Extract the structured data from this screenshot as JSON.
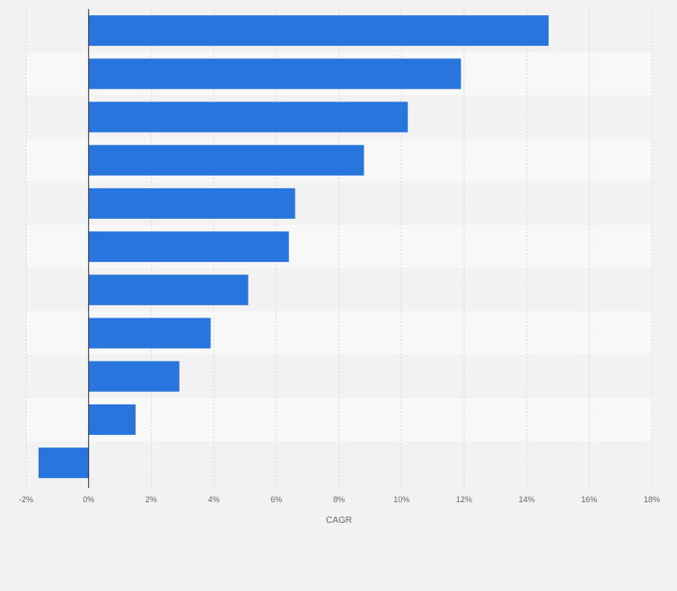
{
  "chart_data": {
    "type": "bar",
    "orientation": "horizontal",
    "categories": [
      "",
      "",
      "",
      "",
      "",
      "",
      "",
      "",
      "",
      "",
      ""
    ],
    "values": [
      14.7,
      11.9,
      10.2,
      8.8,
      6.6,
      6.4,
      5.1,
      3.9,
      2.9,
      1.5,
      -1.6
    ],
    "title": "",
    "xlabel": "CAGR",
    "ylabel": "",
    "xlim": [
      -2,
      18
    ],
    "xticks": [
      -2,
      0,
      2,
      4,
      6,
      8,
      10,
      12,
      14,
      16,
      18
    ],
    "xtick_labels": [
      "-2%",
      "0%",
      "2%",
      "4%",
      "6%",
      "8%",
      "10%",
      "12%",
      "14%",
      "16%",
      "18%"
    ],
    "grid": true,
    "legend": "none"
  },
  "colors": {
    "bar": "#2876dd",
    "band_even": "#f2f2f2",
    "band_odd": "#f8f8f8",
    "gridline": "#d9d9d9",
    "zero_line": "#333333",
    "background": "#f2f2f2"
  }
}
